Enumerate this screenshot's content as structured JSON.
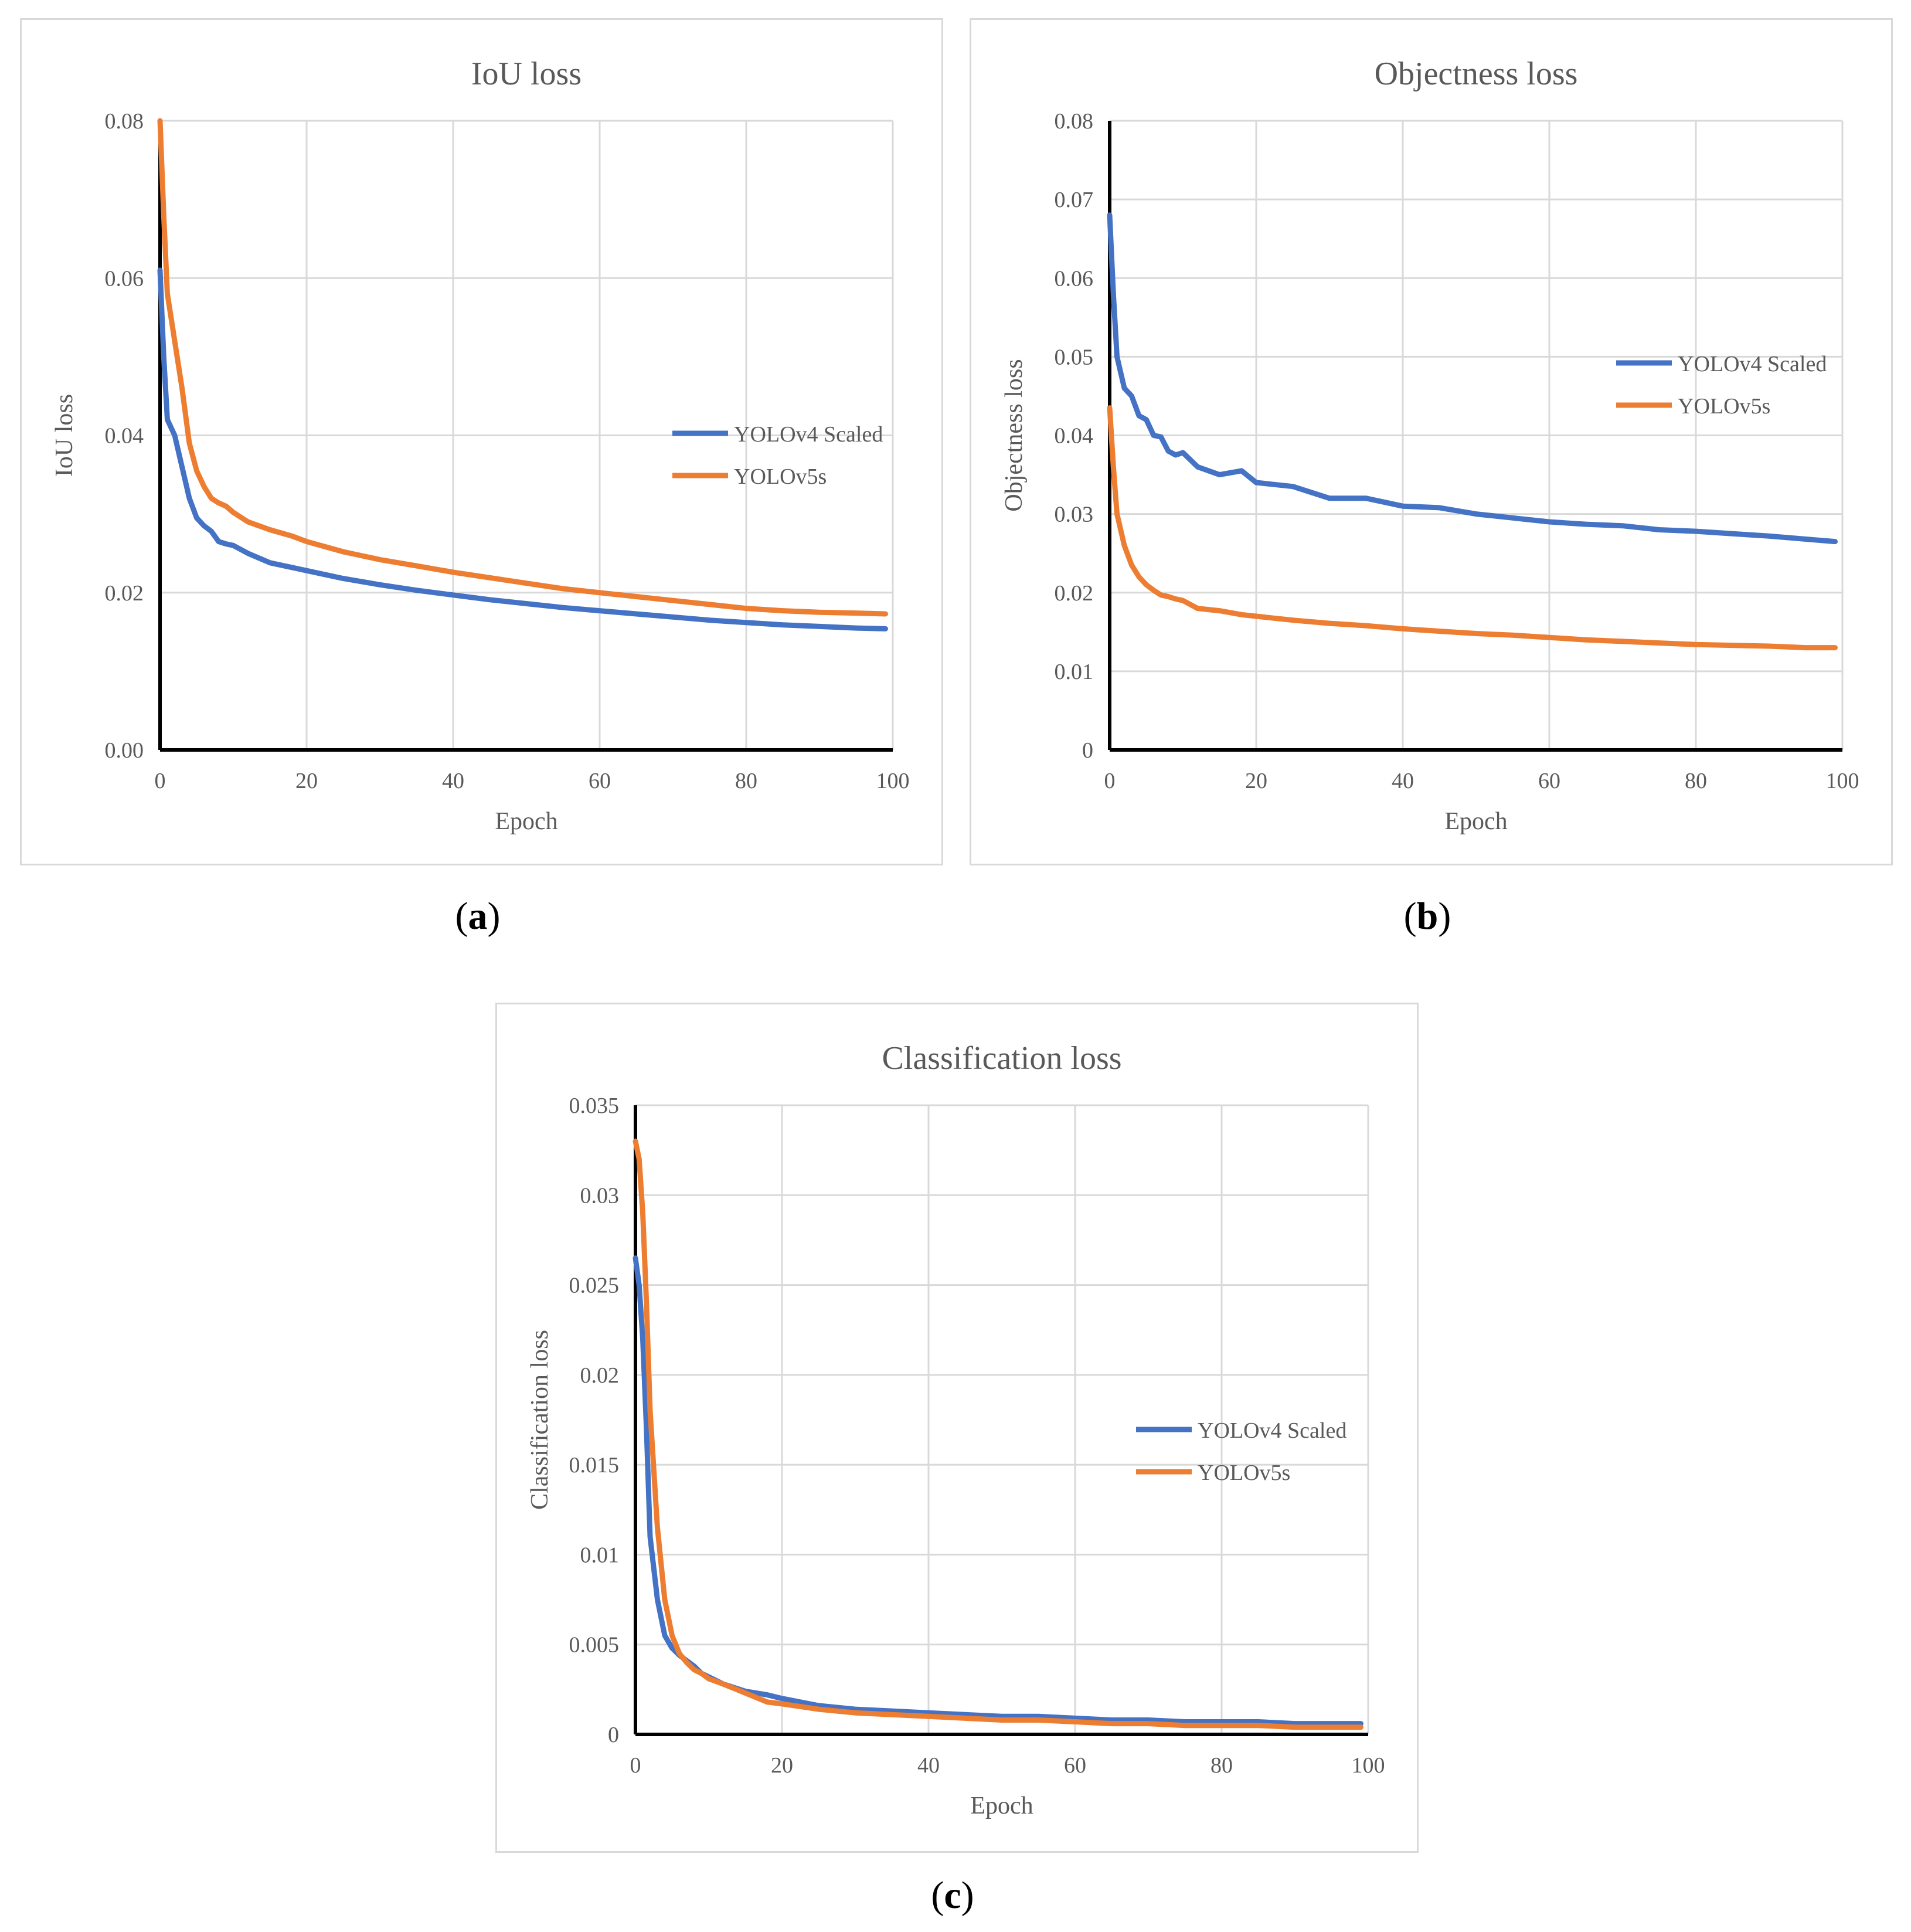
{
  "panels": [
    {
      "caption": {
        "open": "(",
        "letter": "a",
        "close": ")"
      },
      "chart_data": {
        "type": "line",
        "title": "IoU loss",
        "xlabel": "Epoch",
        "ylabel": "IoU loss",
        "xlim": [
          0,
          100
        ],
        "ylim": [
          0,
          0.08
        ],
        "xticks": [
          0,
          20,
          40,
          60,
          80,
          100
        ],
        "xtick_labels": [
          "0",
          "20",
          "40",
          "60",
          "80",
          "100"
        ],
        "yticks": [
          0,
          0.02,
          0.04,
          0.06,
          0.08
        ],
        "ytick_labels": [
          "0.00",
          "0.02",
          "0.04",
          "0.06",
          "0.08"
        ],
        "grid": true,
        "legend": "right",
        "series": [
          {
            "name": "YOLOv4 Scaled",
            "color": "#4472C4",
            "x": [
              0,
              0.5,
              1,
              2,
              3,
              4,
              5,
              6,
              7,
              8,
              9,
              10,
              12,
              15,
              18,
              20,
              25,
              30,
              35,
              40,
              45,
              50,
              55,
              60,
              65,
              70,
              75,
              80,
              85,
              90,
              95,
              99
            ],
            "y": [
              0.061,
              0.05,
              0.042,
              0.04,
              0.036,
              0.032,
              0.0295,
              0.0285,
              0.0278,
              0.0265,
              0.0262,
              0.026,
              0.025,
              0.0238,
              0.0232,
              0.0228,
              0.0218,
              0.021,
              0.0203,
              0.0197,
              0.0191,
              0.0186,
              0.0181,
              0.0177,
              0.0173,
              0.0169,
              0.0165,
              0.0162,
              0.0159,
              0.0157,
              0.0155,
              0.0154
            ]
          },
          {
            "name": "YOLOv5s",
            "color": "#ED7D31",
            "x": [
              0,
              0.5,
              1,
              2,
              3,
              4,
              5,
              6,
              7,
              8,
              9,
              10,
              12,
              15,
              18,
              20,
              25,
              30,
              35,
              40,
              45,
              50,
              55,
              60,
              65,
              70,
              75,
              80,
              85,
              90,
              95,
              99
            ],
            "y": [
              0.08,
              0.068,
              0.058,
              0.052,
              0.046,
              0.039,
              0.0355,
              0.0335,
              0.032,
              0.0314,
              0.031,
              0.0302,
              0.029,
              0.028,
              0.0272,
              0.0265,
              0.0252,
              0.0242,
              0.0234,
              0.0226,
              0.0219,
              0.0212,
              0.0205,
              0.02,
              0.0195,
              0.019,
              0.0185,
              0.018,
              0.0177,
              0.0175,
              0.0174,
              0.0173
            ]
          }
        ]
      }
    },
    {
      "caption": {
        "open": "(",
        "letter": "b",
        "close": ")"
      },
      "chart_data": {
        "type": "line",
        "title": "Objectness loss",
        "xlabel": "Epoch",
        "ylabel": "Objectness loss",
        "xlim": [
          0,
          100
        ],
        "ylim": [
          0,
          0.08
        ],
        "xticks": [
          0,
          20,
          40,
          60,
          80,
          100
        ],
        "xtick_labels": [
          "0",
          "20",
          "40",
          "60",
          "80",
          "100"
        ],
        "yticks": [
          0,
          0.01,
          0.02,
          0.03,
          0.04,
          0.05,
          0.06,
          0.07,
          0.08
        ],
        "ytick_labels": [
          "0",
          "0.01",
          "0.02",
          "0.03",
          "0.04",
          "0.05",
          "0.06",
          "0.07",
          "0.08"
        ],
        "grid": true,
        "legend": "top-right",
        "series": [
          {
            "name": "YOLOv4 Scaled",
            "color": "#4472C4",
            "x": [
              0,
              0.5,
              1,
              2,
              3,
              4,
              5,
              6,
              7,
              8,
              9,
              10,
              12,
              15,
              18,
              20,
              25,
              30,
              35,
              40,
              45,
              50,
              55,
              60,
              65,
              70,
              75,
              80,
              85,
              90,
              95,
              99
            ],
            "y": [
              0.068,
              0.058,
              0.05,
              0.046,
              0.045,
              0.0425,
              0.042,
              0.04,
              0.0398,
              0.038,
              0.0375,
              0.0378,
              0.036,
              0.035,
              0.0355,
              0.034,
              0.0335,
              0.032,
              0.032,
              0.031,
              0.0308,
              0.03,
              0.0295,
              0.029,
              0.0287,
              0.0285,
              0.028,
              0.0278,
              0.0275,
              0.0272,
              0.0268,
              0.0265
            ]
          },
          {
            "name": "YOLOv5s",
            "color": "#ED7D31",
            "x": [
              0,
              0.5,
              1,
              2,
              3,
              4,
              5,
              6,
              7,
              8,
              9,
              10,
              12,
              15,
              18,
              20,
              25,
              30,
              35,
              40,
              45,
              50,
              55,
              60,
              65,
              70,
              75,
              80,
              85,
              90,
              95,
              99
            ],
            "y": [
              0.0435,
              0.036,
              0.03,
              0.026,
              0.0235,
              0.022,
              0.021,
              0.0203,
              0.0197,
              0.0195,
              0.0192,
              0.019,
              0.018,
              0.0177,
              0.0172,
              0.017,
              0.0165,
              0.0161,
              0.0158,
              0.0154,
              0.0151,
              0.0148,
              0.0146,
              0.0143,
              0.014,
              0.0138,
              0.0136,
              0.0134,
              0.0133,
              0.0132,
              0.013,
              0.013
            ]
          }
        ]
      }
    },
    {
      "caption": {
        "open": "(",
        "letter": "c",
        "close": ")"
      },
      "chart_data": {
        "type": "line",
        "title": "Classification loss",
        "xlabel": "Epoch",
        "ylabel": "Classification loss",
        "xlim": [
          0,
          100
        ],
        "ylim": [
          0,
          0.035
        ],
        "xticks": [
          0,
          20,
          40,
          60,
          80,
          100
        ],
        "xtick_labels": [
          "0",
          "20",
          "40",
          "60",
          "80",
          "100"
        ],
        "yticks": [
          0,
          0.005,
          0.01,
          0.015,
          0.02,
          0.025,
          0.03,
          0.035
        ],
        "ytick_labels": [
          "0",
          "0.005",
          "0.01",
          "0.015",
          "0.02",
          "0.025",
          "0.03",
          "0.035"
        ],
        "grid": true,
        "legend": "right",
        "series": [
          {
            "name": "YOLOv4 Scaled",
            "color": "#4472C4",
            "x": [
              0,
              0.5,
              1,
              1.5,
              2,
              3,
              4,
              5,
              6,
              7,
              8,
              9,
              10,
              12,
              15,
              18,
              20,
              25,
              30,
              35,
              40,
              45,
              50,
              55,
              60,
              65,
              70,
              75,
              80,
              85,
              90,
              95,
              99
            ],
            "y": [
              0.0265,
              0.025,
              0.022,
              0.017,
              0.011,
              0.0075,
              0.0055,
              0.0048,
              0.0044,
              0.0041,
              0.0038,
              0.0034,
              0.0032,
              0.0028,
              0.0024,
              0.0022,
              0.002,
              0.0016,
              0.0014,
              0.0013,
              0.0012,
              0.0011,
              0.001,
              0.001,
              0.0009,
              0.0008,
              0.0008,
              0.0007,
              0.0007,
              0.0007,
              0.0006,
              0.0006,
              0.0006
            ]
          },
          {
            "name": "YOLOv5s",
            "color": "#ED7D31",
            "x": [
              0,
              0.5,
              1,
              1.5,
              2,
              3,
              4,
              5,
              6,
              7,
              8,
              9,
              10,
              12,
              15,
              18,
              20,
              25,
              30,
              35,
              40,
              45,
              50,
              55,
              60,
              65,
              70,
              75,
              80,
              85,
              90,
              95,
              99
            ],
            "y": [
              0.033,
              0.032,
              0.029,
              0.024,
              0.018,
              0.0115,
              0.0075,
              0.0055,
              0.0045,
              0.004,
              0.0036,
              0.0034,
              0.0031,
              0.0028,
              0.0023,
              0.0018,
              0.0017,
              0.0014,
              0.0012,
              0.0011,
              0.001,
              0.0009,
              0.0008,
              0.0008,
              0.0007,
              0.0006,
              0.0006,
              0.0005,
              0.0005,
              0.0005,
              0.0004,
              0.0004,
              0.0004
            ]
          }
        ]
      }
    }
  ]
}
